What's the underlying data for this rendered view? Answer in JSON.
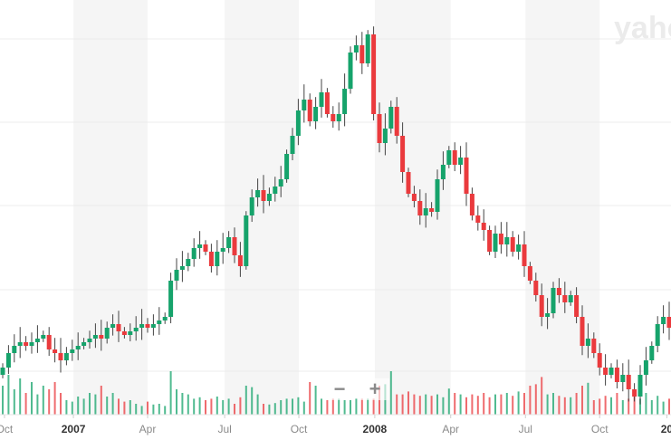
{
  "watermark": "yahoo!",
  "zoom_controls": {
    "zoom_out": "−",
    "zoom_in": "+"
  },
  "colors": {
    "up": "#16a36b",
    "down": "#ea3a3d",
    "wick": "#444444",
    "band": "#f5f5f5",
    "grid": "#ececec"
  },
  "chart_data": {
    "type": "candlestick",
    "title": "",
    "interval": "weekly",
    "xlabel": "",
    "ylabel": "",
    "y_axis_labels_visible": false,
    "ylim": [
      0,
      117.5
    ],
    "x_ticks": [
      {
        "label": "Oct",
        "week": 0.3,
        "year": false
      },
      {
        "label": "2007",
        "week": 12.2,
        "year": true
      },
      {
        "label": "Apr",
        "week": 25,
        "year": false
      },
      {
        "label": "Jul",
        "week": 38.3,
        "year": false
      },
      {
        "label": "Oct",
        "week": 51.1,
        "year": false
      },
      {
        "label": "2008",
        "week": 64.2,
        "year": true
      },
      {
        "label": "Apr",
        "week": 77.3,
        "year": false
      },
      {
        "label": "Jul",
        "week": 90.2,
        "year": false
      },
      {
        "label": "Oct",
        "week": 103,
        "year": false
      },
      {
        "label": "20",
        "week": 114.6,
        "year": true
      }
    ],
    "first_open": 14,
    "open_rule": "open equals previous close",
    "close": [
      16,
      20,
      22,
      23,
      22,
      23,
      24,
      25,
      21,
      20,
      18,
      20,
      21,
      22,
      23,
      24,
      25,
      24,
      27,
      28,
      26,
      25,
      26,
      27,
      28,
      27,
      28,
      29,
      30,
      40,
      43,
      44,
      46,
      49,
      50,
      48,
      44,
      48,
      49,
      52,
      47,
      44,
      58,
      63,
      65,
      62,
      64,
      66,
      68,
      75,
      80,
      87,
      90,
      84,
      88,
      92,
      86,
      84,
      86,
      93,
      103,
      105,
      100,
      108,
      86,
      78,
      82,
      88,
      80,
      70,
      64,
      62,
      58,
      60,
      59,
      68,
      72,
      76,
      72,
      74,
      64,
      58,
      56,
      54,
      48,
      53,
      50,
      52,
      48,
      50,
      44,
      40,
      36,
      30,
      31,
      38,
      36,
      34,
      36,
      30,
      22,
      24,
      20,
      16,
      14,
      16,
      12,
      14,
      10,
      8,
      14,
      18,
      22,
      28,
      30,
      27
    ],
    "volume": [
      40,
      55,
      35,
      50,
      30,
      45,
      28,
      40,
      35,
      45,
      30,
      20,
      18,
      25,
      22,
      30,
      28,
      40,
      25,
      30,
      22,
      18,
      20,
      15,
      12,
      18,
      14,
      15,
      12,
      60,
      35,
      30,
      28,
      22,
      24,
      20,
      22,
      25,
      20,
      22,
      15,
      24,
      40,
      38,
      28,
      15,
      14,
      16,
      20,
      22,
      22,
      24,
      18,
      45,
      40,
      22,
      20,
      22,
      22,
      20,
      20,
      22,
      22,
      22,
      22,
      40,
      42,
      60,
      28,
      28,
      32,
      28,
      26,
      28,
      26,
      28,
      24,
      36,
      30,
      28,
      24,
      28,
      26,
      30,
      24,
      28,
      28,
      30,
      26,
      32,
      30,
      40,
      42,
      52,
      28,
      30,
      26,
      24,
      24,
      30,
      40,
      44,
      20,
      22,
      26,
      24,
      30,
      20,
      22,
      28,
      22,
      30,
      20,
      26,
      18,
      22
    ]
  }
}
